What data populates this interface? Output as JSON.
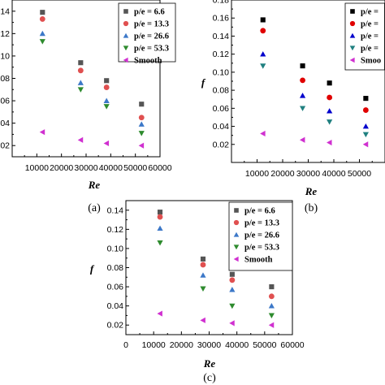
{
  "chart_data": [
    {
      "type": "scatter",
      "caption": "(a)",
      "xlabel": "Re",
      "ylabel": "",
      "xlim": [
        0,
        60000
      ],
      "ylim": [
        0.01,
        0.15
      ],
      "xticks": [
        10000,
        20000,
        30000,
        40000,
        50000,
        60000
      ],
      "yticks": [
        0.02,
        0.04,
        0.06,
        0.08,
        0.1,
        0.12,
        0.14
      ],
      "ytick_labels": [
        "02",
        "04",
        "06",
        "08",
        "10",
        "12",
        "14"
      ],
      "grid": false,
      "legend_position": "top-right",
      "series": [
        {
          "name": "p/e = 6.6",
          "marker": "square",
          "color": "#555555",
          "x": [
            12300,
            27800,
            38300,
            52500
          ],
          "y": [
            0.139,
            0.094,
            0.078,
            0.057
          ]
        },
        {
          "name": "p/e = 13.3",
          "marker": "circle",
          "color": "#e05050",
          "x": [
            12300,
            27800,
            38300,
            52500
          ],
          "y": [
            0.133,
            0.087,
            0.072,
            0.045
          ]
        },
        {
          "name": "p/e = 26.6",
          "marker": "triangle-up",
          "color": "#3c78c8",
          "x": [
            12300,
            27800,
            38300,
            52500
          ],
          "y": [
            0.12,
            0.076,
            0.06,
            0.039
          ]
        },
        {
          "name": "p/e = 53.3",
          "marker": "triangle-down",
          "color": "#2e8b2e",
          "x": [
            12300,
            27800,
            38300,
            52500
          ],
          "y": [
            0.113,
            0.07,
            0.055,
            0.031
          ]
        },
        {
          "name": "Smooth",
          "marker": "triangle-left",
          "color": "#d030d0",
          "x": [
            12300,
            27800,
            38300,
            52500
          ],
          "y": [
            0.032,
            0.025,
            0.022,
            0.02
          ]
        }
      ]
    },
    {
      "type": "scatter",
      "caption": "(b)",
      "xlabel": "Re",
      "ylabel": "f",
      "xlim": [
        0,
        60000
      ],
      "ylim": [
        0.0,
        0.18
      ],
      "xticks": [
        10000,
        20000,
        30000,
        40000,
        50000
      ],
      "yticks": [
        0.02,
        0.04,
        0.06,
        0.08,
        0.1,
        0.12,
        0.14,
        0.16,
        0.18
      ],
      "ytick_labels": [
        "0.02",
        "0.04",
        "0.06",
        "0.08",
        "0.10",
        "0.12",
        "0.14",
        "0.16",
        "0.18"
      ],
      "grid": false,
      "legend_position": "top-right",
      "series": [
        {
          "name": "p/e =",
          "marker": "square",
          "color": "#000000",
          "x": [
            12300,
            27800,
            38300,
            52500
          ],
          "y": [
            0.158,
            0.107,
            0.088,
            0.071
          ]
        },
        {
          "name": "p/e =",
          "marker": "circle",
          "color": "#e00000",
          "x": [
            12300,
            27800,
            38300,
            52500
          ],
          "y": [
            0.146,
            0.091,
            0.072,
            0.058
          ]
        },
        {
          "name": "p/e =",
          "marker": "triangle-up",
          "color": "#0000cc",
          "x": [
            12300,
            27800,
            38300,
            52500
          ],
          "y": [
            0.12,
            0.074,
            0.057,
            0.04
          ]
        },
        {
          "name": "p/e =",
          "marker": "triangle-down",
          "color": "#208080",
          "x": [
            12300,
            27800,
            38300,
            52500
          ],
          "y": [
            0.107,
            0.06,
            0.045,
            0.031
          ]
        },
        {
          "name": "Smoo",
          "marker": "triangle-left",
          "color": "#d030d0",
          "x": [
            12300,
            27800,
            38300,
            52500
          ],
          "y": [
            0.032,
            0.025,
            0.022,
            0.02
          ]
        }
      ]
    },
    {
      "type": "scatter",
      "caption": "(c)",
      "xlabel": "Re",
      "ylabel": "f",
      "xlim": [
        0,
        60000
      ],
      "ylim": [
        0.01,
        0.15
      ],
      "xticks": [
        0,
        10000,
        20000,
        30000,
        40000,
        50000,
        60000
      ],
      "yticks": [
        0.02,
        0.04,
        0.06,
        0.08,
        0.1,
        0.12,
        0.14
      ],
      "ytick_labels": [
        "0.02",
        "0.04",
        "0.06",
        "0.08",
        "0.10",
        "0.12",
        "0.14"
      ],
      "grid": false,
      "legend_position": "top-right",
      "series": [
        {
          "name": "p/e = 6.6",
          "marker": "square",
          "color": "#555555",
          "x": [
            12300,
            27800,
            38300,
            52500
          ],
          "y": [
            0.138,
            0.089,
            0.073,
            0.06
          ]
        },
        {
          "name": "p/e = 13.3",
          "marker": "circle",
          "color": "#e05050",
          "x": [
            12300,
            27800,
            38300,
            52500
          ],
          "y": [
            0.133,
            0.083,
            0.067,
            0.05
          ]
        },
        {
          "name": "p/e = 26.6",
          "marker": "triangle-up",
          "color": "#3c78c8",
          "x": [
            12300,
            27800,
            38300,
            52500
          ],
          "y": [
            0.121,
            0.072,
            0.057,
            0.04
          ]
        },
        {
          "name": "p/e = 53.3",
          "marker": "triangle-down",
          "color": "#2e8b2e",
          "x": [
            12300,
            27800,
            38300,
            52500
          ],
          "y": [
            0.106,
            0.058,
            0.04,
            0.03
          ]
        },
        {
          "name": "Smooth",
          "marker": "triangle-left",
          "color": "#d030d0",
          "x": [
            12300,
            27800,
            38300,
            52500
          ],
          "y": [
            0.032,
            0.025,
            0.022,
            0.02
          ]
        }
      ]
    }
  ]
}
